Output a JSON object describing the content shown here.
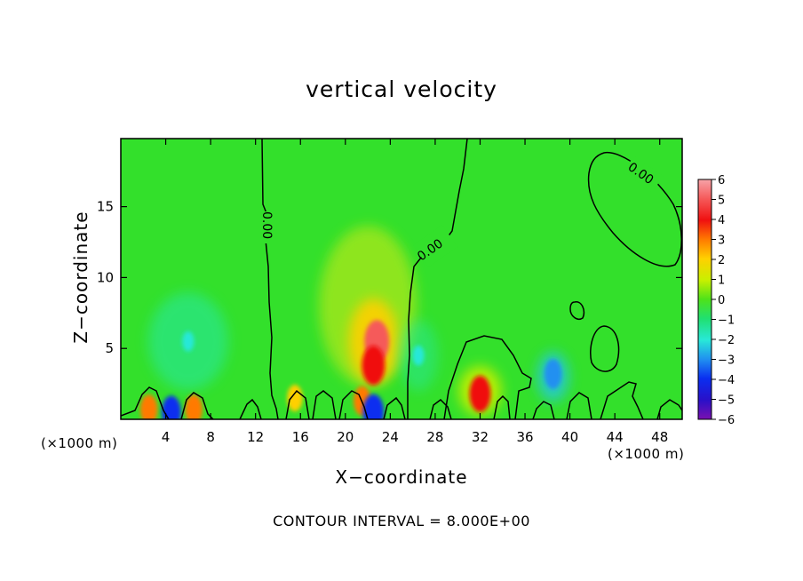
{
  "chart_data": {
    "type": "heatmap",
    "title": "vertical velocity",
    "xlabel": "X−coordinate",
    "ylabel": "Z−coordinate",
    "x_unit_label": "(×1000 m)",
    "y_unit_label": "(×1000 m)",
    "x_ticks": [
      4,
      8,
      12,
      16,
      20,
      24,
      28,
      32,
      36,
      40,
      44,
      48
    ],
    "y_ticks": [
      5,
      10,
      15
    ],
    "xlim": [
      0,
      50
    ],
    "ylim": [
      0,
      19.8
    ],
    "colorbar": {
      "ticks": [
        "6",
        "5",
        "4",
        "3",
        "2",
        "1",
        "0",
        "−1",
        "−2",
        "−3",
        "−4",
        "−5",
        "−6"
      ],
      "range": [
        -6,
        6
      ]
    },
    "contour_labels": [
      "0.00",
      "0.00",
      "0.00"
    ],
    "features": [
      {
        "x": 22.8,
        "z": 5.5,
        "w": 5
      },
      {
        "x": 22.5,
        "z": 3.8,
        "w": 4.5
      },
      {
        "x": 32.0,
        "z": 1.8,
        "w": 4
      },
      {
        "x": 21.5,
        "z": 1.3,
        "w": 3
      },
      {
        "x": 2.5,
        "z": 0.7,
        "w": 3
      },
      {
        "x": 6.5,
        "z": 0.7,
        "w": 3
      },
      {
        "x": 15.5,
        "z": 1.5,
        "w": 2.5
      },
      {
        "x": 38.5,
        "z": 3.2,
        "w": -3
      },
      {
        "x": 4.5,
        "z": 0.5,
        "w": -3.5
      },
      {
        "x": 22.5,
        "z": 0.5,
        "w": -4
      },
      {
        "x": 6,
        "z": 5.5,
        "w": -1.5
      },
      {
        "x": 26.5,
        "z": 4.5,
        "w": -1.5
      }
    ],
    "grid": false
  },
  "note": "CONTOUR INTERVAL = 8.000E+00",
  "colors": {
    "background_field": "#33e02b",
    "contour": "#000000"
  }
}
